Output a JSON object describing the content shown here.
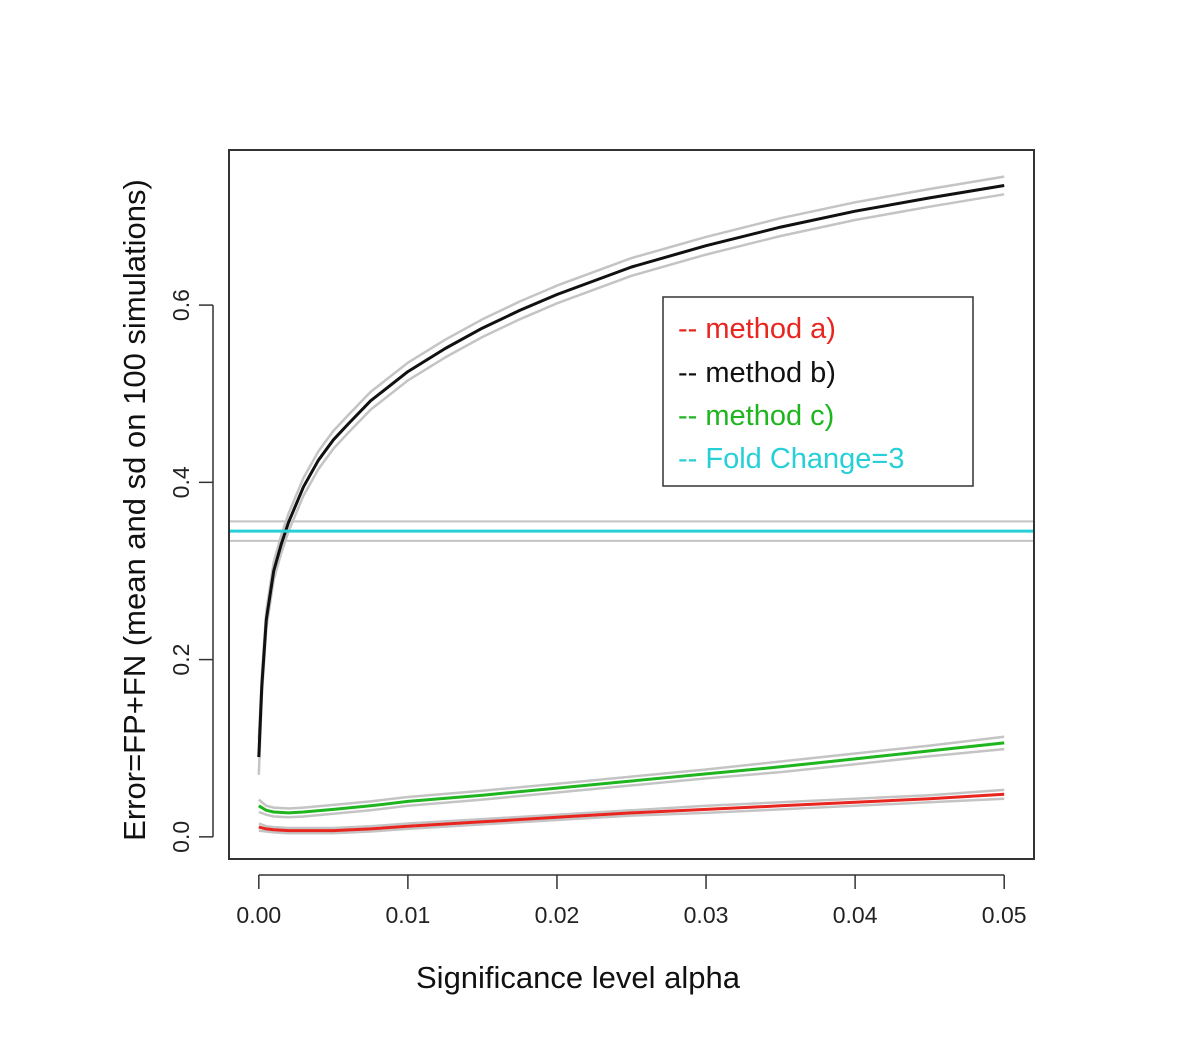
{
  "chart_data": {
    "type": "line",
    "xlabel": "Significance level alpha",
    "ylabel": "Error=FP+FN (mean and sd on 100 simulations)",
    "xlim": [
      -0.002,
      0.052
    ],
    "ylim": [
      -0.025,
      0.775
    ],
    "x_ticks": [
      0.0,
      0.01,
      0.02,
      0.03,
      0.04,
      0.05
    ],
    "x_tick_labels": [
      "0.00",
      "0.01",
      "0.02",
      "0.03",
      "0.04",
      "0.05"
    ],
    "y_ticks": [
      0.0,
      0.2,
      0.4,
      0.6
    ],
    "y_tick_labels": [
      "0.0",
      "0.2",
      "0.4",
      "0.6"
    ],
    "grid": false,
    "legend_position": "top-right",
    "sd_band_color": "#c4c4c4",
    "series": [
      {
        "name": "-- method a)",
        "color": "#e8251f",
        "x": [
          0.0,
          0.0005,
          0.001,
          0.002,
          0.003,
          0.005,
          0.0075,
          0.01,
          0.015,
          0.02,
          0.025,
          0.03,
          0.035,
          0.04,
          0.045,
          0.05
        ],
        "mean": [
          0.011,
          0.009,
          0.008,
          0.007,
          0.007,
          0.007,
          0.009,
          0.012,
          0.017,
          0.022,
          0.027,
          0.031,
          0.035,
          0.039,
          0.043,
          0.048
        ],
        "sd": [
          0.004,
          0.003,
          0.003,
          0.003,
          0.003,
          0.003,
          0.003,
          0.003,
          0.003,
          0.003,
          0.003,
          0.004,
          0.004,
          0.004,
          0.004,
          0.005
        ]
      },
      {
        "name": "-- method b)",
        "color": "#111111",
        "x": [
          0.0,
          0.0002,
          0.0005,
          0.001,
          0.0015,
          0.002,
          0.003,
          0.004,
          0.005,
          0.006,
          0.0075,
          0.01,
          0.0125,
          0.015,
          0.0175,
          0.02,
          0.025,
          0.03,
          0.035,
          0.04,
          0.045,
          0.05
        ],
        "mean": [
          0.09,
          0.17,
          0.245,
          0.3,
          0.33,
          0.355,
          0.395,
          0.425,
          0.448,
          0.466,
          0.492,
          0.525,
          0.551,
          0.574,
          0.594,
          0.612,
          0.643,
          0.667,
          0.688,
          0.706,
          0.721,
          0.735
        ],
        "sd": [
          0.02,
          0.012,
          0.01,
          0.01,
          0.01,
          0.01,
          0.01,
          0.01,
          0.01,
          0.01,
          0.01,
          0.01,
          0.01,
          0.01,
          0.01,
          0.01,
          0.01,
          0.01,
          0.01,
          0.01,
          0.01,
          0.01
        ]
      },
      {
        "name": "-- method c)",
        "color": "#1fb51f",
        "x": [
          0.0,
          0.0005,
          0.001,
          0.002,
          0.003,
          0.005,
          0.0075,
          0.01,
          0.015,
          0.02,
          0.025,
          0.03,
          0.035,
          0.04,
          0.045,
          0.05
        ],
        "mean": [
          0.035,
          0.03,
          0.028,
          0.027,
          0.028,
          0.031,
          0.035,
          0.04,
          0.047,
          0.055,
          0.063,
          0.071,
          0.079,
          0.088,
          0.097,
          0.106
        ],
        "sd": [
          0.007,
          0.005,
          0.005,
          0.005,
          0.005,
          0.005,
          0.005,
          0.005,
          0.005,
          0.005,
          0.005,
          0.005,
          0.006,
          0.006,
          0.006,
          0.007
        ]
      },
      {
        "name": "-- Fold Change=3",
        "color": "#27d0d8",
        "type": "hline",
        "mean": 0.345,
        "sd": 0.011
      }
    ]
  }
}
